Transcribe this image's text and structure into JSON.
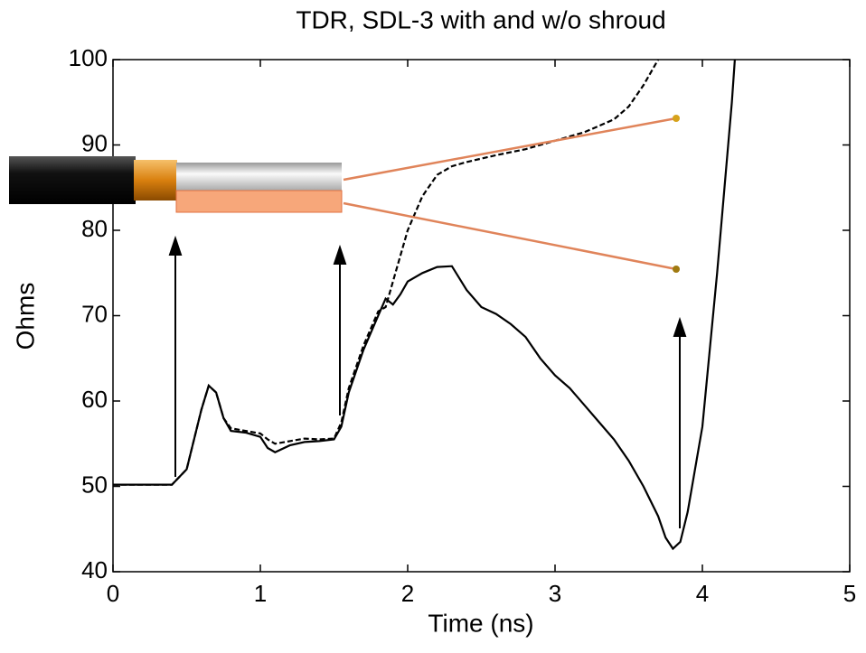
{
  "chart_data": {
    "type": "line",
    "title": "TDR, SDL-3 with and w/o shroud",
    "x_label": "Time (ns)",
    "y_label": "Ohms",
    "xlim": [
      0,
      5
    ],
    "xticks": [
      0,
      1,
      2,
      3,
      4,
      5
    ],
    "ylim": [
      40,
      100
    ],
    "yticks": [
      40,
      50,
      60,
      70,
      80,
      90,
      100
    ],
    "series": [
      {
        "color": "#000000",
        "line_style": "solid",
        "x": [
          0,
          0.4,
          0.5,
          0.6,
          0.65,
          0.7,
          0.75,
          0.8,
          0.9,
          1.0,
          1.05,
          1.1,
          1.2,
          1.3,
          1.4,
          1.5,
          1.55,
          1.6,
          1.7,
          1.8,
          1.85,
          1.9,
          1.95,
          2.0,
          2.1,
          2.2,
          2.3,
          2.4,
          2.5,
          2.6,
          2.7,
          2.8,
          2.9,
          3.0,
          3.1,
          3.2,
          3.3,
          3.4,
          3.5,
          3.6,
          3.7,
          3.75,
          3.8,
          3.85,
          3.9,
          4.0,
          4.1,
          4.2,
          4.22
        ],
        "values": [
          50.2,
          50.2,
          52,
          59,
          61.8,
          61,
          58,
          56.5,
          56.3,
          55.8,
          54.5,
          54,
          54.8,
          55.2,
          55.3,
          55.5,
          57,
          61,
          66,
          70,
          72,
          71.3,
          72.5,
          74,
          75,
          75.7,
          75.8,
          73,
          71,
          70.2,
          69,
          67.5,
          65,
          63,
          61.5,
          59.5,
          57.5,
          55.5,
          53,
          50,
          46.5,
          44,
          42.7,
          43.5,
          47,
          57,
          75,
          95,
          100
        ]
      },
      {
        "color": "#000000",
        "line_style": "dashed",
        "x": [
          0,
          0.4,
          0.5,
          0.6,
          0.65,
          0.7,
          0.75,
          0.8,
          0.9,
          1.0,
          1.05,
          1.1,
          1.2,
          1.3,
          1.4,
          1.5,
          1.55,
          1.6,
          1.7,
          1.8,
          1.85,
          1.9,
          2.0,
          2.1,
          2.2,
          2.3,
          2.4,
          2.6,
          2.8,
          3.0,
          3.2,
          3.4,
          3.5,
          3.6,
          3.7
        ],
        "values": [
          50.2,
          50.2,
          52,
          59,
          61.8,
          61,
          58,
          56.8,
          56.5,
          56.2,
          55.5,
          55,
          55.3,
          55.6,
          55.5,
          55.6,
          57.5,
          61.5,
          66.5,
          70.5,
          71,
          74,
          80,
          84,
          86.5,
          87.5,
          88,
          88.8,
          89.5,
          90.5,
          91.5,
          93,
          94.5,
          97,
          100
        ]
      }
    ]
  }
}
